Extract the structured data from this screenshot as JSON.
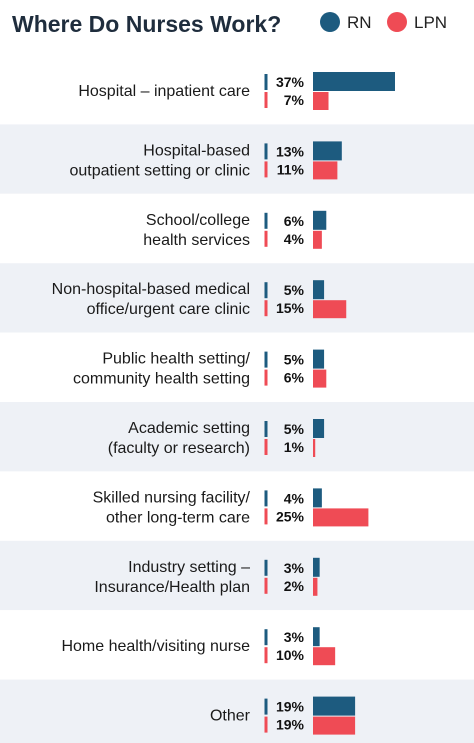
{
  "title": "Where Do Nurses Work?",
  "colors": {
    "RN": "#1d5b7f",
    "LPN": "#ef4b55",
    "row_band": "#eef1f6",
    "title": "#1f2d3d"
  },
  "legend": [
    {
      "key": "RN",
      "label": "RN"
    },
    {
      "key": "LPN",
      "label": "LPN"
    }
  ],
  "chart_data": {
    "type": "bar",
    "orientation": "horizontal",
    "title": "Where Do Nurses Work?",
    "legend_position": "top-right",
    "grid": false,
    "xlim": [
      0,
      37
    ],
    "categories": [
      [
        "Hospital – inpatient care"
      ],
      [
        "Hospital-based",
        "outpatient setting or clinic"
      ],
      [
        "School/college",
        "health services"
      ],
      [
        "Non-hospital-based medical",
        "office/urgent care clinic"
      ],
      [
        "Public health setting/",
        "community health setting"
      ],
      [
        "Academic setting",
        "(faculty or research)"
      ],
      [
        "Skilled nursing facility/",
        "other long-term care"
      ],
      [
        "Industry setting –",
        "Insurance/Health plan"
      ],
      [
        "Home health/visiting nurse"
      ],
      [
        "Other"
      ]
    ],
    "series": [
      {
        "name": "RN",
        "values": [
          37,
          13,
          6,
          5,
          5,
          5,
          4,
          3,
          3,
          19
        ],
        "labels": [
          "37%",
          "13%",
          "6%",
          "5%",
          "5%",
          "5%",
          "4%",
          "3%",
          "3%",
          "19%"
        ]
      },
      {
        "name": "LPN",
        "values": [
          7,
          11,
          4,
          15,
          6,
          1,
          25,
          2,
          10,
          19
        ],
        "labels": [
          "7%",
          "11%",
          "4%",
          "15%",
          "6%",
          "1%",
          "25%",
          "2%",
          "10%",
          "19%"
        ]
      }
    ]
  }
}
